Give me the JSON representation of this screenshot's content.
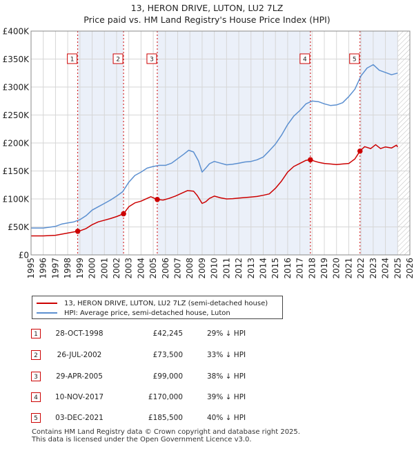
{
  "title_line1": "13, HERON DRIVE, LUTON, LU2 7LZ",
  "title_line2": "Price paid vs. HM Land Registry's House Price Index (HPI)",
  "chart_data": {
    "type": "line",
    "ylim": [
      0,
      400000
    ],
    "xlim": [
      1995,
      2026
    ],
    "y_ticks": [
      0,
      50000,
      100000,
      150000,
      200000,
      250000,
      300000,
      350000,
      400000
    ],
    "y_tick_labels": [
      "£0",
      "£50K",
      "£100K",
      "£150K",
      "£200K",
      "£250K",
      "£300K",
      "£350K",
      "£400K"
    ],
    "x_ticks": [
      1995,
      1996,
      1997,
      1998,
      1999,
      2000,
      2001,
      2002,
      2003,
      2004,
      2005,
      2006,
      2007,
      2008,
      2009,
      2010,
      2011,
      2012,
      2013,
      2014,
      2015,
      2016,
      2017,
      2018,
      2019,
      2020,
      2021,
      2022,
      2023,
      2024,
      2025,
      2026
    ],
    "x_tick_labels": [
      "1995",
      "1996",
      "1997",
      "1998",
      "1999",
      "2000",
      "2001",
      "2002",
      "2003",
      "2004",
      "2005",
      "2006",
      "2007",
      "2008",
      "2009",
      "2010",
      "2011",
      "2012",
      "2013",
      "2014",
      "2015",
      "2016",
      "2017",
      "2018",
      "2019",
      "2020",
      "2021",
      "2022",
      "2023",
      "2024",
      "2025",
      "2026"
    ],
    "grid": true,
    "data_end": 2025.0,
    "shaded_periods": [
      [
        1998.82,
        2002.57
      ],
      [
        2005.33,
        2017.86
      ],
      [
        2021.92,
        2025.0
      ]
    ],
    "series": [
      {
        "name": "13, HERON DRIVE, LUTON, LU2 7LZ (semi-detached house)",
        "color": "#cc0000",
        "x": [
          1995.0,
          1996.0,
          1997.0,
          1997.5,
          1998.0,
          1998.5,
          1998.82,
          1999.0,
          1999.5,
          2000.0,
          2000.5,
          2001.0,
          2001.5,
          2002.0,
          2002.57,
          2003.0,
          2003.5,
          2004.0,
          2004.5,
          2004.8,
          2005.33,
          2005.8,
          2006.3,
          2006.8,
          2007.3,
          2007.8,
          2008.3,
          2008.6,
          2009.0,
          2009.3,
          2009.6,
          2010.0,
          2010.5,
          2011.0,
          2011.5,
          2012.0,
          2012.5,
          2013.0,
          2013.5,
          2014.0,
          2014.5,
          2015.0,
          2015.5,
          2016.0,
          2016.5,
          2017.0,
          2017.5,
          2017.86,
          2018.2,
          2018.6,
          2019.0,
          2019.5,
          2020.0,
          2020.5,
          2021.0,
          2021.5,
          2021.92,
          2022.3,
          2022.8,
          2023.2,
          2023.6,
          2024.0,
          2024.5,
          2024.9,
          2025.0
        ],
        "y": [
          34000,
          34000,
          35000,
          37000,
          39000,
          41000,
          42245,
          43000,
          47000,
          54000,
          59000,
          62000,
          65000,
          68500,
          73500,
          86000,
          93000,
          96000,
          101000,
          104000,
          99000,
          98000,
          101000,
          105000,
          110000,
          115000,
          114000,
          106000,
          92000,
          95000,
          101000,
          105000,
          102000,
          100000,
          100500,
          101500,
          102500,
          103500,
          104500,
          106500,
          109000,
          119000,
          132000,
          148000,
          158000,
          163500,
          169000,
          170000,
          167500,
          165000,
          163500,
          162500,
          161500,
          162500,
          163500,
          171500,
          185500,
          193500,
          190000,
          197000,
          190000,
          193000,
          191000,
          196000,
          193000
        ]
      },
      {
        "name": "HPI: Average price, semi-detached house, Luton",
        "color": "#5b8fd0",
        "x": [
          1995.0,
          1996.0,
          1997.0,
          1997.5,
          1998.0,
          1998.5,
          1999.0,
          1999.5,
          2000.0,
          2000.5,
          2001.0,
          2001.5,
          2002.0,
          2002.5,
          2003.0,
          2003.5,
          2004.0,
          2004.5,
          2005.0,
          2005.5,
          2006.0,
          2006.5,
          2007.0,
          2007.5,
          2007.9,
          2008.3,
          2008.7,
          2009.0,
          2009.3,
          2009.6,
          2010.0,
          2010.5,
          2011.0,
          2011.5,
          2012.0,
          2012.5,
          2013.0,
          2013.5,
          2014.0,
          2014.5,
          2015.0,
          2015.5,
          2016.0,
          2016.5,
          2017.0,
          2017.5,
          2018.0,
          2018.5,
          2019.0,
          2019.5,
          2020.0,
          2020.5,
          2021.0,
          2021.5,
          2022.0,
          2022.5,
          2023.0,
          2023.5,
          2024.0,
          2024.5,
          2025.0
        ],
        "y": [
          48000,
          48000,
          51000,
          55000,
          57000,
          59000,
          63000,
          70000,
          80000,
          86000,
          92000,
          98000,
          105000,
          113000,
          130000,
          142000,
          148000,
          155000,
          158000,
          160000,
          160000,
          164000,
          172000,
          180000,
          187000,
          184000,
          168000,
          148000,
          155000,
          163000,
          167000,
          164000,
          161000,
          162000,
          164000,
          166000,
          167000,
          170000,
          175000,
          186000,
          198000,
          214000,
          233000,
          248000,
          258000,
          270000,
          275000,
          274000,
          270000,
          267000,
          268000,
          272000,
          283000,
          296000,
          320000,
          334000,
          340000,
          330000,
          326000,
          322000,
          325000
        ]
      }
    ],
    "annotations": [
      {
        "label": "1",
        "x": 1998.82,
        "y": 42245
      },
      {
        "label": "2",
        "x": 2002.57,
        "y": 73500
      },
      {
        "label": "3",
        "x": 2005.33,
        "y": 99000
      },
      {
        "label": "4",
        "x": 2017.86,
        "y": 170000
      },
      {
        "label": "5",
        "x": 2021.92,
        "y": 185500
      }
    ]
  },
  "legend": {
    "red_label": "13, HERON DRIVE, LUTON, LU2 7LZ (semi-detached house)",
    "blue_label": "HPI: Average price, semi-detached house, Luton"
  },
  "transactions": [
    {
      "num": "1",
      "date": "28-OCT-1998",
      "price": "£42,245",
      "hpi": "29% ↓ HPI"
    },
    {
      "num": "2",
      "date": "26-JUL-2002",
      "price": "£73,500",
      "hpi": "33% ↓ HPI"
    },
    {
      "num": "3",
      "date": "29-APR-2005",
      "price": "£99,000",
      "hpi": "38% ↓ HPI"
    },
    {
      "num": "4",
      "date": "10-NOV-2017",
      "price": "£170,000",
      "hpi": "39% ↓ HPI"
    },
    {
      "num": "5",
      "date": "03-DEC-2021",
      "price": "£185,500",
      "hpi": "40% ↓ HPI"
    }
  ],
  "footer": {
    "line1": "Contains HM Land Registry data © Crown copyright and database right 2025.",
    "line2": "This data is licensed under the Open Government Licence v3.0."
  }
}
